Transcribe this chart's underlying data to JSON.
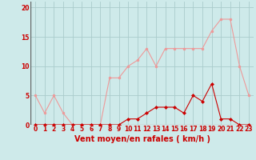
{
  "x": [
    0,
    1,
    2,
    3,
    4,
    5,
    6,
    7,
    8,
    9,
    10,
    11,
    12,
    13,
    14,
    15,
    16,
    17,
    18,
    19,
    20,
    21,
    22,
    23
  ],
  "vent_moyen": [
    0,
    0,
    0,
    0,
    0,
    0,
    0,
    0,
    0,
    0,
    1,
    1,
    2,
    3,
    3,
    3,
    2,
    5,
    4,
    7,
    1,
    1,
    0,
    0
  ],
  "vent_rafales": [
    5,
    2,
    5,
    2,
    0,
    0,
    0,
    0,
    8,
    8,
    10,
    11,
    13,
    10,
    13,
    13,
    13,
    13,
    13,
    16,
    18,
    18,
    10,
    5
  ],
  "bg_color": "#ceeaea",
  "grid_color": "#aacccc",
  "line_color_moyen": "#cc0000",
  "line_color_rafales": "#ee9999",
  "xlabel": "Vent moyen/en rafales ( km/h )",
  "ylim": [
    0,
    21
  ],
  "yticks": [
    0,
    5,
    10,
    15,
    20
  ],
  "xlim": [
    -0.5,
    23.5
  ],
  "title_fontsize": 7,
  "axis_fontsize": 5.5,
  "xlabel_fontsize": 7
}
